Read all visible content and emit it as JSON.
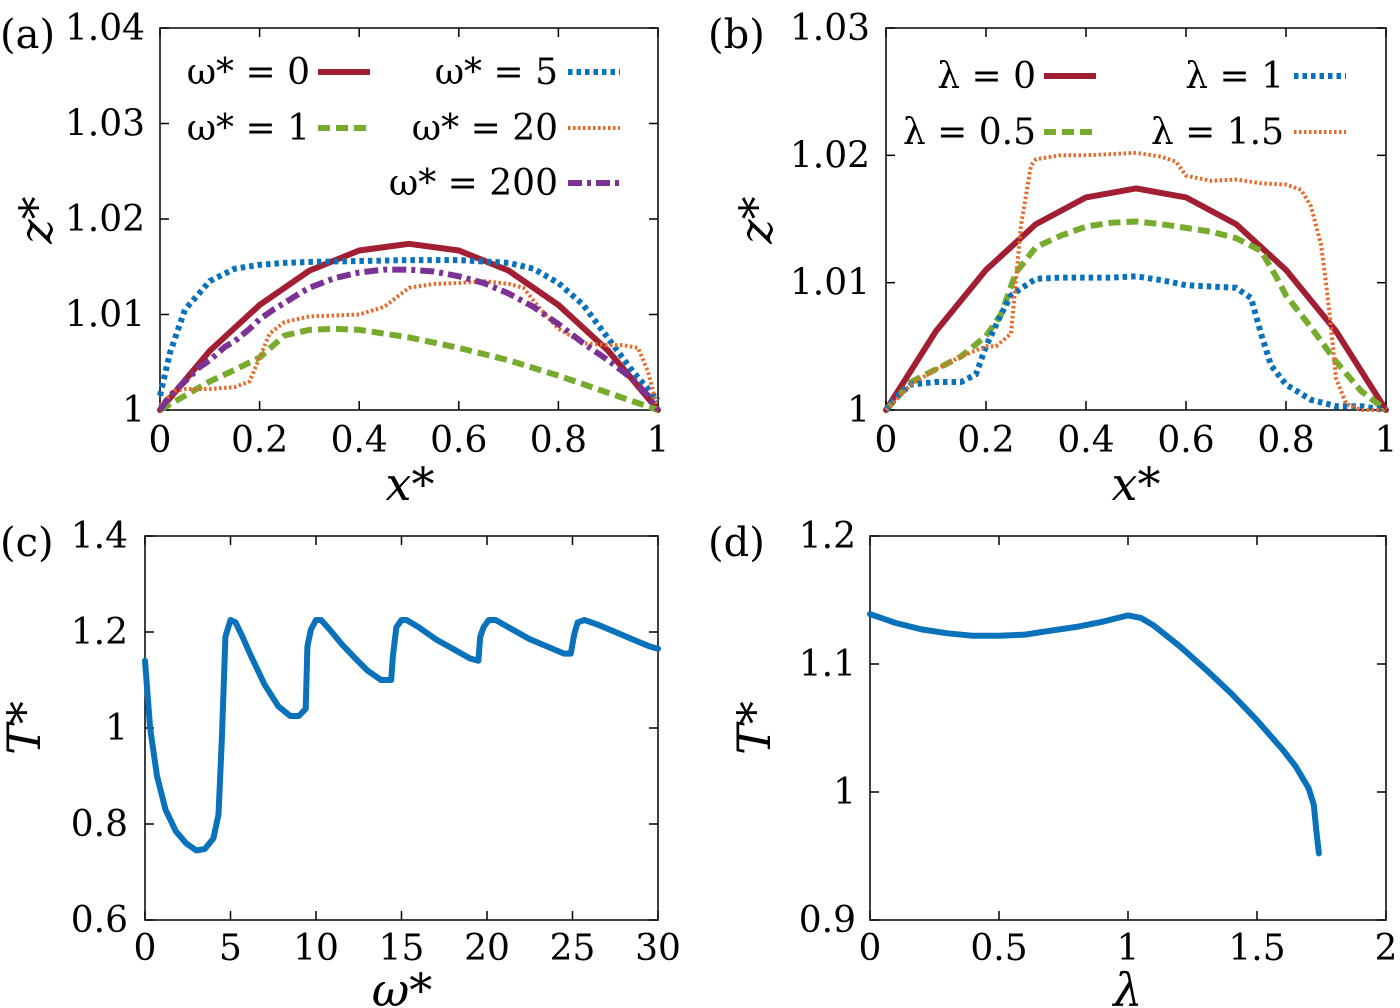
{
  "colors": {
    "red": "#a11e33",
    "green": "#76ab2e",
    "blue": "#0a72ba",
    "orange": "#e86a2b",
    "purple": "#7b3294"
  },
  "chart_data": [
    {
      "panel_label": "(a)",
      "type": "line",
      "xlabel": "x*",
      "ylabel": "z*",
      "xlim": [
        0,
        1
      ],
      "ylim": [
        1,
        1.04
      ],
      "xticks": [
        0,
        0.2,
        0.4,
        0.6,
        0.8,
        1
      ],
      "xtick_labels": [
        "0",
        "0.2",
        "0.4",
        "0.6",
        "0.8",
        "1"
      ],
      "yticks": [
        1,
        1.01,
        1.02,
        1.03,
        1.04
      ],
      "ytick_labels": [
        "1",
        "1.01",
        "1.02",
        "1.03",
        "1.04"
      ],
      "series": [
        {
          "name": "ω* = 0",
          "style": "solid",
          "color": "red",
          "x": [
            0,
            0.1,
            0.2,
            0.3,
            0.4,
            0.5,
            0.6,
            0.7,
            0.8,
            0.9,
            1
          ],
          "y": [
            1.0,
            1.0062,
            1.011,
            1.0146,
            1.0167,
            1.0174,
            1.0167,
            1.0146,
            1.011,
            1.0062,
            1.0
          ]
        },
        {
          "name": "ω* = 1",
          "style": "dashed",
          "color": "green",
          "x": [
            0,
            0.05,
            0.1,
            0.15,
            0.2,
            0.25,
            0.3,
            0.35,
            0.4,
            0.5,
            0.6,
            0.7,
            0.8,
            0.9,
            1
          ],
          "y": [
            1.0,
            1.0015,
            1.003,
            1.0042,
            1.0055,
            1.0078,
            1.0084,
            1.0085,
            1.0084,
            1.0076,
            1.0065,
            1.0052,
            1.0036,
            1.0018,
            1.0
          ]
        },
        {
          "name": "ω* = 5",
          "style": "dotted",
          "color": "blue",
          "x": [
            0,
            0.02,
            0.05,
            0.1,
            0.15,
            0.2,
            0.25,
            0.3,
            0.4,
            0.5,
            0.6,
            0.7,
            0.75,
            0.8,
            0.85,
            0.9,
            0.95,
            1
          ],
          "y": [
            1.0015,
            1.006,
            1.0105,
            1.0135,
            1.0148,
            1.0152,
            1.0154,
            1.0155,
            1.0156,
            1.0157,
            1.0157,
            1.0154,
            1.0148,
            1.0133,
            1.011,
            1.0075,
            1.004,
            1.001
          ]
        },
        {
          "name": "ω* = 20",
          "style": "finedot",
          "color": "orange",
          "x": [
            0,
            0.03,
            0.05,
            0.1,
            0.15,
            0.18,
            0.2,
            0.22,
            0.25,
            0.3,
            0.35,
            0.4,
            0.45,
            0.5,
            0.55,
            0.6,
            0.65,
            0.7,
            0.73,
            0.76,
            0.8,
            0.85,
            0.9,
            0.93,
            0.96,
            0.98,
            1
          ],
          "y": [
            1.0005,
            1.002,
            1.0022,
            1.0022,
            1.0024,
            1.003,
            1.0055,
            1.008,
            1.0092,
            1.0098,
            1.0099,
            1.01,
            1.0108,
            1.0128,
            1.0132,
            1.0133,
            1.0135,
            1.0132,
            1.0128,
            1.0108,
            1.0085,
            1.007,
            1.0068,
            1.0068,
            1.0065,
            1.004,
            1.0
          ]
        },
        {
          "name": "ω* = 200",
          "style": "dashdot",
          "color": "purple",
          "x": [
            0,
            0.02,
            0.05,
            0.08,
            0.1,
            0.13,
            0.15,
            0.18,
            0.2,
            0.23,
            0.25,
            0.28,
            0.3,
            0.35,
            0.4,
            0.45,
            0.5,
            0.55,
            0.6,
            0.65,
            0.7,
            0.75,
            0.8,
            0.85,
            0.9,
            0.95,
            0.98,
            1
          ],
          "y": [
            1.0,
            1.0015,
            1.003,
            1.0045,
            1.0052,
            1.0066,
            1.0072,
            1.0085,
            1.0095,
            1.0106,
            1.0112,
            1.0122,
            1.0128,
            1.0138,
            1.0144,
            1.0147,
            1.0147,
            1.0145,
            1.014,
            1.0133,
            1.0122,
            1.0108,
            1.009,
            1.007,
            1.0052,
            1.0032,
            1.0015,
            1.0
          ]
        }
      ]
    },
    {
      "panel_label": "(b)",
      "type": "line",
      "xlabel": "x*",
      "ylabel": "z*",
      "xlim": [
        0,
        1
      ],
      "ylim": [
        1,
        1.03
      ],
      "xticks": [
        0,
        0.2,
        0.4,
        0.6,
        0.8,
        1
      ],
      "xtick_labels": [
        "0",
        "0.2",
        "0.4",
        "0.6",
        "0.8",
        "1"
      ],
      "yticks": [
        1,
        1.01,
        1.02,
        1.03
      ],
      "ytick_labels": [
        "1",
        "1.01",
        "1.02",
        "1.03"
      ],
      "series": [
        {
          "name": "λ = 0",
          "style": "solid",
          "color": "red",
          "x": [
            0,
            0.1,
            0.2,
            0.3,
            0.4,
            0.5,
            0.6,
            0.7,
            0.8,
            0.9,
            1
          ],
          "y": [
            1.0,
            1.0062,
            1.011,
            1.0146,
            1.0167,
            1.0174,
            1.0167,
            1.0146,
            1.011,
            1.0062,
            1.0
          ]
        },
        {
          "name": "λ = 0.5",
          "style": "dashed",
          "color": "green",
          "x": [
            0,
            0.05,
            0.1,
            0.15,
            0.2,
            0.23,
            0.26,
            0.3,
            0.35,
            0.4,
            0.45,
            0.5,
            0.55,
            0.6,
            0.65,
            0.7,
            0.75,
            0.78,
            0.8,
            0.85,
            0.9,
            0.95,
            1
          ],
          "y": [
            1.0,
            1.0022,
            1.0032,
            1.0042,
            1.0058,
            1.0075,
            1.0108,
            1.0128,
            1.0137,
            1.0144,
            1.0147,
            1.0148,
            1.0146,
            1.0143,
            1.014,
            1.0135,
            1.0125,
            1.0105,
            1.009,
            1.0065,
            1.0038,
            1.0015,
            1.0
          ]
        },
        {
          "name": "λ = 1",
          "style": "dotted",
          "color": "blue",
          "x": [
            0,
            0.02,
            0.05,
            0.1,
            0.15,
            0.18,
            0.2,
            0.23,
            0.25,
            0.28,
            0.3,
            0.35,
            0.4,
            0.45,
            0.5,
            0.55,
            0.6,
            0.65,
            0.7,
            0.73,
            0.75,
            0.77,
            0.8,
            0.85,
            0.9,
            0.95,
            1
          ],
          "y": [
            1.0,
            1.001,
            1.002,
            1.0022,
            1.0022,
            1.0028,
            1.005,
            1.0075,
            1.009,
            1.0098,
            1.0103,
            1.0104,
            1.0104,
            1.0104,
            1.0105,
            1.0102,
            1.0098,
            1.0097,
            1.0096,
            1.0088,
            1.006,
            1.0035,
            1.002,
            1.0008,
            1.0003,
            1.0003,
            1.0
          ]
        },
        {
          "name": "λ = 1.5",
          "style": "finedot",
          "color": "orange",
          "x": [
            0,
            0.05,
            0.1,
            0.15,
            0.2,
            0.22,
            0.25,
            0.27,
            0.29,
            0.3,
            0.35,
            0.4,
            0.45,
            0.5,
            0.55,
            0.58,
            0.6,
            0.65,
            0.7,
            0.75,
            0.8,
            0.83,
            0.85,
            0.87,
            0.88,
            0.89,
            0.9,
            0.92,
            0.95,
            1
          ],
          "y": [
            1.0,
            1.002,
            1.0032,
            1.0042,
            1.005,
            1.005,
            1.006,
            1.0145,
            1.0192,
            1.0197,
            1.02,
            1.02,
            1.0201,
            1.0202,
            1.0199,
            1.0195,
            1.0184,
            1.018,
            1.0181,
            1.0178,
            1.0177,
            1.0173,
            1.016,
            1.013,
            1.01,
            1.0065,
            1.0025,
            1.0005,
            1.0,
            1.0
          ]
        }
      ]
    },
    {
      "panel_label": "(c)",
      "type": "line",
      "xlabel": "ω*",
      "ylabel": "T*",
      "xlim": [
        0,
        30
      ],
      "ylim": [
        0.6,
        1.4
      ],
      "xticks": [
        0,
        5,
        10,
        15,
        20,
        25,
        30
      ],
      "xtick_labels": [
        "0",
        "5",
        "10",
        "15",
        "20",
        "25",
        "30"
      ],
      "yticks": [
        0.6,
        0.8,
        1,
        1.2,
        1.4
      ],
      "ytick_labels": [
        "0.6",
        "0.8",
        "1",
        "1.2",
        "1.4"
      ],
      "series": [
        {
          "name": "T*",
          "style": "solid",
          "color": "blue",
          "x": [
            0,
            0.3,
            0.7,
            1.2,
            1.8,
            2.4,
            3.0,
            3.5,
            4.0,
            4.3,
            4.5,
            4.7,
            5.0,
            5.3,
            5.7,
            6.2,
            7.0,
            7.8,
            8.5,
            9.0,
            9.4,
            9.5,
            9.7,
            10.0,
            10.3,
            10.8,
            11.5,
            12.3,
            13.0,
            13.8,
            14.4,
            14.5,
            14.7,
            15.0,
            15.3,
            16.0,
            17.0,
            18.0,
            19.0,
            19.5,
            19.6,
            19.8,
            20.1,
            20.5,
            21.5,
            22.5,
            23.5,
            24.5,
            24.9,
            25.1,
            25.3,
            25.7,
            26.5,
            27.5,
            28.5,
            29.5,
            30.0
          ],
          "y": [
            1.14,
            1.0,
            0.9,
            0.83,
            0.785,
            0.76,
            0.745,
            0.748,
            0.77,
            0.82,
            0.98,
            1.19,
            1.225,
            1.22,
            1.19,
            1.15,
            1.09,
            1.045,
            1.025,
            1.025,
            1.04,
            1.17,
            1.205,
            1.225,
            1.225,
            1.205,
            1.175,
            1.145,
            1.12,
            1.1,
            1.1,
            1.15,
            1.21,
            1.225,
            1.225,
            1.21,
            1.185,
            1.165,
            1.145,
            1.14,
            1.19,
            1.21,
            1.225,
            1.225,
            1.205,
            1.185,
            1.17,
            1.155,
            1.155,
            1.195,
            1.22,
            1.225,
            1.215,
            1.2,
            1.185,
            1.17,
            1.165
          ]
        }
      ]
    },
    {
      "panel_label": "(d)",
      "type": "line",
      "xlabel": "λ",
      "ylabel": "T*",
      "xlim": [
        0,
        2
      ],
      "ylim": [
        0.9,
        1.2
      ],
      "xticks": [
        0,
        0.5,
        1,
        1.5,
        2
      ],
      "xtick_labels": [
        "0",
        "0.5",
        "1",
        "1.5",
        "2"
      ],
      "yticks": [
        0.9,
        1,
        1.1,
        1.2
      ],
      "ytick_labels": [
        "0.9",
        "1",
        "1.1",
        "1.2"
      ],
      "series": [
        {
          "name": "T*",
          "style": "solid",
          "color": "blue",
          "x": [
            0,
            0.1,
            0.2,
            0.3,
            0.4,
            0.5,
            0.6,
            0.7,
            0.8,
            0.9,
            1.0,
            1.05,
            1.1,
            1.2,
            1.3,
            1.4,
            1.5,
            1.6,
            1.65,
            1.7,
            1.72,
            1.73,
            1.74
          ],
          "y": [
            1.139,
            1.132,
            1.127,
            1.124,
            1.122,
            1.122,
            1.123,
            1.126,
            1.129,
            1.133,
            1.138,
            1.136,
            1.13,
            1.114,
            1.096,
            1.077,
            1.056,
            1.033,
            1.02,
            1.003,
            0.99,
            0.97,
            0.952
          ]
        }
      ]
    }
  ]
}
